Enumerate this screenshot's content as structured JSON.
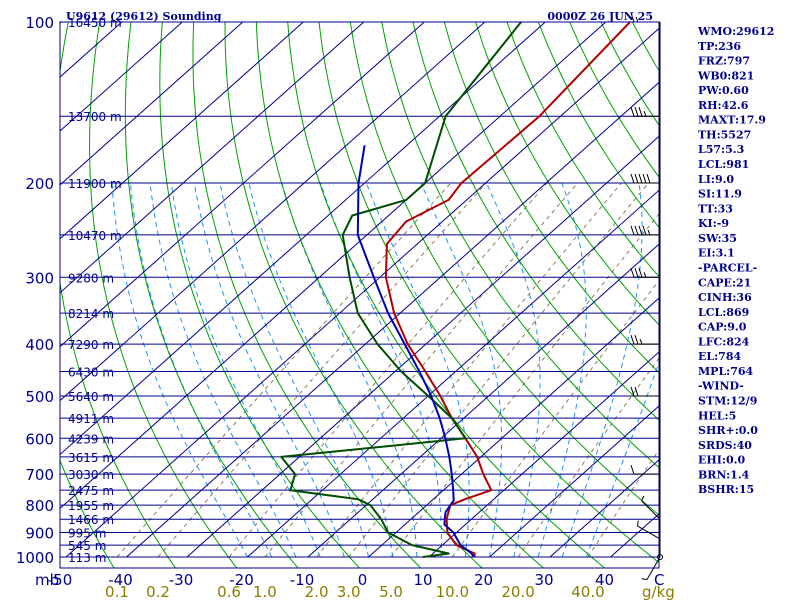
{
  "header": {
    "station": "U9612 (29612) Sounding",
    "time": "0000Z 26 JUN 25"
  },
  "indices": [
    "WMO:29612",
    "TP:236",
    "FRZ:797",
    "WB0:821",
    "PW:0.60",
    "RH:42.6",
    "MAXT:17.9",
    "TH:5527",
    "L57:5.3",
    "LCL:981",
    "LI:9.0",
    "SI:11.9",
    "TT:33",
    "KI:-9",
    "SW:35",
    "EI:3.1",
    "-PARCEL-",
    "CAPE:21",
    "CINH:36",
    "LCL:869",
    "CAP:9.0",
    "LFC:824",
    "EL:784",
    "MPL:764",
    "-WIND-",
    "STM:12/9",
    "HEL:5",
    "SHR+:0.0",
    "SRDS:40",
    "EHI:0.0",
    "BRN:1.4",
    "BSHR:15"
  ],
  "colors": {
    "isobar": "#00008b",
    "isotherm": "#00008b",
    "dry_adiabat": "#00a000",
    "moist_adiabat": "#1e90ff",
    "mixing_ratio": "#8b7d5a",
    "temperature": "#b00000",
    "dewpoint": "#004d00",
    "parcel": "#0000b0"
  },
  "chart_data": {
    "type": "skew-t log-p sounding",
    "pressure_levels": [
      1000,
      900,
      800,
      700,
      600,
      500,
      400,
      300,
      200,
      100
    ],
    "pressure_axis_unit": "mb",
    "temperature_ticks": [
      -50,
      -40,
      -30,
      -20,
      -10,
      0,
      10,
      20,
      30,
      40
    ],
    "temperature_axis_end_label": "C",
    "mixing_ratio_ticks": [
      "0.1",
      "0.2",
      "0.6",
      "1.0",
      "2.0",
      "3.0",
      "5.0",
      "10.0",
      "20.0",
      "40.0"
    ],
    "mixing_ratio_unit": "g/kg",
    "height_labels": [
      {
        "p": 1000,
        "label": "113 m"
      },
      {
        "p": 950,
        "label": "545 m"
      },
      {
        "p": 900,
        "label": "995 m"
      },
      {
        "p": 850,
        "label": "1466 m"
      },
      {
        "p": 800,
        "label": "1955 m"
      },
      {
        "p": 750,
        "label": "2475 m"
      },
      {
        "p": 700,
        "label": "3030 m"
      },
      {
        "p": 650,
        "label": "3615 m"
      },
      {
        "p": 600,
        "label": "4239 m"
      },
      {
        "p": 550,
        "label": "4911 m"
      },
      {
        "p": 500,
        "label": "5640 m"
      },
      {
        "p": 450,
        "label": "6430 m"
      },
      {
        "p": 400,
        "label": "7290 m"
      },
      {
        "p": 350,
        "label": "8214 m"
      },
      {
        "p": 300,
        "label": "9280 m"
      },
      {
        "p": 250,
        "label": "10470 m"
      },
      {
        "p": 200,
        "label": "11900 m"
      },
      {
        "p": 150,
        "label": "13700 m"
      },
      {
        "p": 100,
        "label": "16450 m"
      }
    ],
    "series": [
      {
        "role": "temperature",
        "points": [
          [
            1000,
            17.5
          ],
          [
            985,
            16.9
          ],
          [
            950,
            12.3
          ],
          [
            900,
            8.5
          ],
          [
            850,
            5.9
          ],
          [
            800,
            3.9
          ],
          [
            780,
            5.2
          ],
          [
            750,
            7.9
          ],
          [
            700,
            3.6
          ],
          [
            650,
            -0.6
          ],
          [
            600,
            -6.0
          ],
          [
            550,
            -12.0
          ],
          [
            500,
            -18.0
          ],
          [
            450,
            -25.0
          ],
          [
            400,
            -33.0
          ],
          [
            350,
            -41.0
          ],
          [
            300,
            -49.0
          ],
          [
            260,
            -55.0
          ],
          [
            236,
            -56.0
          ],
          [
            215,
            -53.0
          ],
          [
            200,
            -54.0
          ],
          [
            150,
            -53.5
          ],
          [
            100,
            -56.0
          ]
        ]
      },
      {
        "role": "dewpoint",
        "points": [
          [
            1000,
            9.0
          ],
          [
            985,
            12.6
          ],
          [
            950,
            5.0
          ],
          [
            900,
            -1.3
          ],
          [
            850,
            -4.9
          ],
          [
            800,
            -9.3
          ],
          [
            780,
            -12.4
          ],
          [
            750,
            -25.3
          ],
          [
            700,
            -27.5
          ],
          [
            650,
            -33.0
          ],
          [
            600,
            -6.0
          ],
          [
            550,
            -12.0
          ],
          [
            500,
            -20.0
          ],
          [
            450,
            -29.0
          ],
          [
            400,
            -38.0
          ],
          [
            350,
            -47.0
          ],
          [
            300,
            -55.0
          ],
          [
            250,
            -64.0
          ],
          [
            230,
            -66.0
          ],
          [
            215,
            -60.0
          ],
          [
            200,
            -60.0
          ],
          [
            150,
            -69.0
          ],
          [
            100,
            -74.0
          ]
        ]
      },
      {
        "role": "parcel",
        "points": [
          [
            1000,
            17.5
          ],
          [
            981,
            16.0
          ],
          [
            950,
            13.0
          ],
          [
            900,
            9.5
          ],
          [
            869,
            6.5
          ],
          [
            850,
            5.6
          ],
          [
            824,
            4.4
          ],
          [
            784,
            3.6
          ],
          [
            750,
            1.6
          ],
          [
            700,
            -1.6
          ],
          [
            650,
            -5.2
          ],
          [
            600,
            -9.3
          ],
          [
            550,
            -14.0
          ],
          [
            500,
            -19.5
          ],
          [
            450,
            -26.0
          ],
          [
            400,
            -33.5
          ],
          [
            350,
            -42.0
          ],
          [
            300,
            -51.0
          ],
          [
            250,
            -61.5
          ],
          [
            200,
            -71.0
          ],
          [
            170,
            -77.0
          ]
        ]
      }
    ],
    "wind_barbs": [
      {
        "p": 1000,
        "dir": 210,
        "spd": 5
      },
      {
        "p": 925,
        "dir": 300,
        "spd": 5
      },
      {
        "p": 850,
        "dir": 315,
        "spd": 5
      },
      {
        "p": 700,
        "dir": 270,
        "spd": 10
      },
      {
        "p": 500,
        "dir": 270,
        "spd": 20
      },
      {
        "p": 400,
        "dir": 270,
        "spd": 25
      },
      {
        "p": 300,
        "dir": 270,
        "spd": 35
      },
      {
        "p": 250,
        "dir": 270,
        "spd": 45
      },
      {
        "p": 200,
        "dir": 270,
        "spd": 50
      },
      {
        "p": 150,
        "dir": 270,
        "spd": 35
      },
      {
        "p": 100,
        "dir": 270,
        "spd": 15
      }
    ]
  }
}
